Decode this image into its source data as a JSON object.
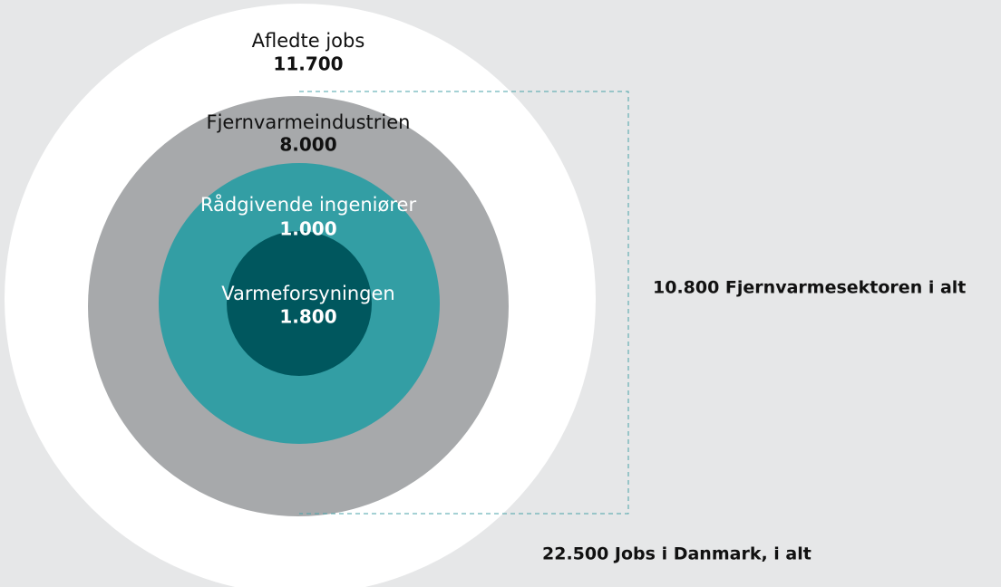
{
  "rings": [
    {
      "label": "Afledte jobs",
      "value": "11.700"
    },
    {
      "label": "Fjernvarmeindustrien",
      "value": "8.000"
    },
    {
      "label": "Rådgivende ingeniører",
      "value": "1.000"
    },
    {
      "label": "Varmeforsyningen",
      "value": "1.800"
    }
  ],
  "sector_total": "10.800 Fjernvarmesektoren i alt",
  "grand_total": "22.500 Jobs i Danmark, i alt"
}
